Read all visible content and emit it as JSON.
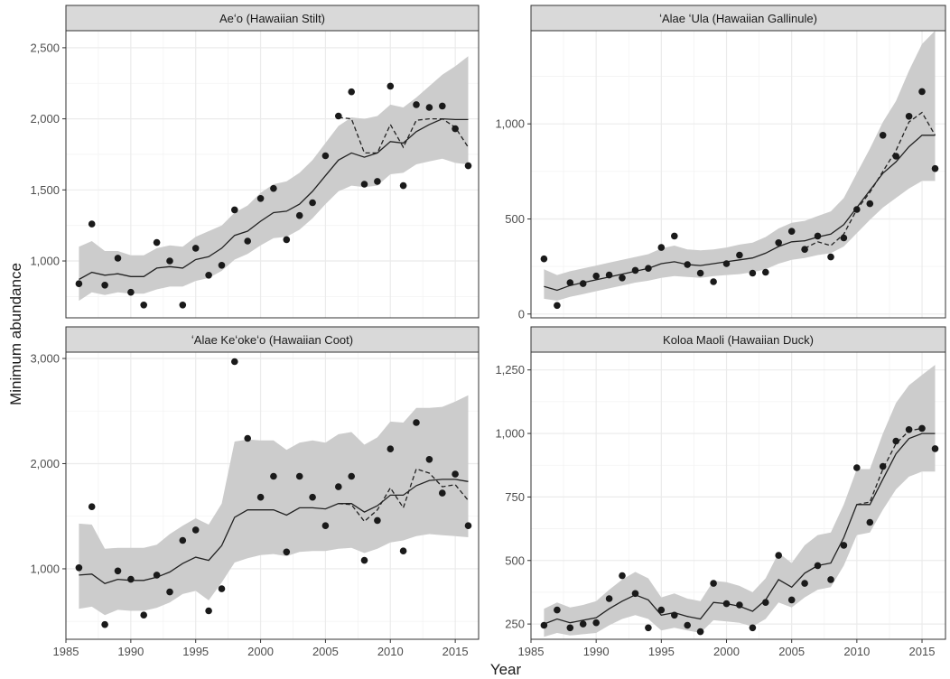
{
  "figure": {
    "ylabel": "Minimum abundance",
    "xlabel": "Year"
  },
  "colors": {
    "ribbon": "#cccccc",
    "line": "#222222",
    "point": "#1a1a1a",
    "strip_bg": "#d9d9d9",
    "panel_border": "#333333",
    "grid": "#ebebeb"
  },
  "chart_data": [
    {
      "type": "line",
      "title": "Aeʻo (Hawaiian Stilt)",
      "xlim": [
        1985,
        2016.8
      ],
      "ylim": [
        600,
        2620
      ],
      "xticks": [
        1985,
        1990,
        1995,
        2000,
        2005,
        2010,
        2015
      ],
      "yticks": [
        1000,
        1500,
        2000,
        2500
      ],
      "ytick_labels": [
        "1,000",
        "1,500",
        "2,000",
        "2,500"
      ],
      "x": [
        1986,
        1987,
        1988,
        1989,
        1990,
        1991,
        1992,
        1993,
        1994,
        1995,
        1996,
        1997,
        1998,
        1999,
        2000,
        2001,
        2002,
        2003,
        2004,
        2005,
        2006,
        2007,
        2008,
        2009,
        2010,
        2011,
        2012,
        2013,
        2014,
        2015,
        2016
      ],
      "points": [
        840,
        1260,
        830,
        1020,
        780,
        690,
        1130,
        1000,
        690,
        1090,
        900,
        970,
        1360,
        1140,
        1440,
        1510,
        1150,
        1320,
        1410,
        1740,
        2020,
        2190,
        1540,
        1560,
        2230,
        1530,
        2100,
        2080,
        2090,
        1930,
        1670
      ],
      "fit": [
        870,
        920,
        900,
        910,
        890,
        890,
        950,
        960,
        950,
        1010,
        1030,
        1090,
        1180,
        1210,
        1280,
        1340,
        1350,
        1400,
        1490,
        1600,
        1710,
        1760,
        1730,
        1760,
        1840,
        1830,
        1910,
        1960,
        2000,
        1995,
        1995
      ],
      "dashed": [
        null,
        null,
        null,
        null,
        null,
        null,
        null,
        null,
        null,
        null,
        null,
        null,
        null,
        null,
        null,
        null,
        null,
        null,
        null,
        null,
        2010,
        2000,
        1760,
        1760,
        1960,
        1800,
        1990,
        2000,
        2000,
        1940,
        1800
      ],
      "lower": [
        720,
        780,
        760,
        780,
        770,
        770,
        800,
        820,
        820,
        860,
        880,
        930,
        1010,
        1050,
        1110,
        1160,
        1170,
        1220,
        1300,
        1400,
        1490,
        1530,
        1520,
        1530,
        1610,
        1620,
        1680,
        1700,
        1720,
        1690,
        1680
      ],
      "upper": [
        1100,
        1140,
        1070,
        1070,
        1040,
        1040,
        1090,
        1110,
        1100,
        1170,
        1210,
        1250,
        1340,
        1390,
        1480,
        1540,
        1560,
        1620,
        1710,
        1830,
        1950,
        2010,
        2000,
        2020,
        2100,
        2080,
        2150,
        2230,
        2310,
        2370,
        2440
      ]
    },
    {
      "type": "line",
      "title": "ʻAlae ʻUla (Hawaiian Gallinule)",
      "xlim": [
        1985,
        2016.8
      ],
      "ylim": [
        -20,
        1490
      ],
      "xticks": [
        1985,
        1990,
        1995,
        2000,
        2005,
        2010,
        2015
      ],
      "yticks": [
        0,
        500,
        1000
      ],
      "ytick_labels": [
        "0",
        "500",
        "1,000"
      ],
      "x": [
        1986,
        1987,
        1988,
        1989,
        1990,
        1991,
        1992,
        1993,
        1994,
        1995,
        1996,
        1997,
        1998,
        1999,
        2000,
        2001,
        2002,
        2003,
        2004,
        2005,
        2006,
        2007,
        2008,
        2009,
        2010,
        2011,
        2012,
        2013,
        2014,
        2015,
        2016
      ],
      "points": [
        290,
        45,
        165,
        160,
        200,
        205,
        190,
        230,
        240,
        350,
        410,
        260,
        215,
        170,
        265,
        310,
        215,
        220,
        375,
        435,
        340,
        410,
        300,
        400,
        550,
        580,
        940,
        830,
        1040,
        1170,
        765
      ],
      "fit": [
        145,
        125,
        150,
        165,
        180,
        195,
        210,
        225,
        240,
        265,
        275,
        260,
        255,
        265,
        275,
        285,
        295,
        320,
        355,
        380,
        385,
        405,
        420,
        470,
        560,
        650,
        740,
        800,
        880,
        940,
        940
      ],
      "dashed": [
        null,
        null,
        null,
        null,
        null,
        null,
        null,
        null,
        null,
        null,
        null,
        null,
        null,
        null,
        null,
        null,
        null,
        null,
        null,
        null,
        345,
        380,
        360,
        420,
        550,
        640,
        750,
        860,
        1010,
        1060,
        940
      ],
      "lower": [
        80,
        70,
        90,
        105,
        120,
        135,
        150,
        165,
        175,
        190,
        200,
        195,
        190,
        200,
        205,
        210,
        220,
        235,
        265,
        285,
        295,
        310,
        320,
        355,
        425,
        495,
        560,
        610,
        660,
        700,
        700
      ],
      "upper": [
        235,
        205,
        225,
        240,
        255,
        270,
        285,
        300,
        315,
        345,
        360,
        340,
        335,
        340,
        350,
        365,
        375,
        405,
        450,
        480,
        490,
        515,
        540,
        610,
        740,
        870,
        1010,
        1120,
        1280,
        1420,
        1490
      ]
    },
    {
      "type": "line",
      "title": "ʻAlae Keʻokeʻo (Hawaiian Coot)",
      "xlim": [
        1985,
        2016.8
      ],
      "ylim": [
        330,
        3060
      ],
      "xticks": [
        1985,
        1990,
        1995,
        2000,
        2005,
        2010,
        2015
      ],
      "yticks": [
        1000,
        2000,
        3000
      ],
      "ytick_labels": [
        "1,000",
        "2,000",
        "3,000"
      ],
      "x": [
        1986,
        1987,
        1988,
        1989,
        1990,
        1991,
        1992,
        1993,
        1994,
        1995,
        1996,
        1997,
        1998,
        1999,
        2000,
        2001,
        2002,
        2003,
        2004,
        2005,
        2006,
        2007,
        2008,
        2009,
        2010,
        2011,
        2012,
        2013,
        2014,
        2015,
        2016
      ],
      "points": [
        1010,
        1590,
        470,
        980,
        900,
        560,
        940,
        780,
        1270,
        1370,
        600,
        810,
        2970,
        2240,
        1680,
        1880,
        1160,
        1880,
        1680,
        1410,
        1780,
        1880,
        1080,
        1460,
        2140,
        1170,
        2390,
        2040,
        1720,
        1900,
        1410
      ],
      "fit": [
        940,
        950,
        860,
        900,
        890,
        890,
        920,
        970,
        1050,
        1110,
        1080,
        1220,
        1490,
        1560,
        1560,
        1560,
        1510,
        1580,
        1580,
        1570,
        1620,
        1620,
        1540,
        1600,
        1700,
        1700,
        1790,
        1840,
        1850,
        1850,
        1830
      ],
      "dashed": [
        null,
        null,
        null,
        null,
        null,
        null,
        null,
        null,
        null,
        null,
        null,
        null,
        null,
        null,
        null,
        null,
        null,
        null,
        null,
        null,
        1620,
        1610,
        1450,
        1560,
        1770,
        1580,
        1950,
        1910,
        1780,
        1800,
        1650
      ],
      "lower": [
        620,
        640,
        560,
        610,
        600,
        600,
        630,
        680,
        760,
        790,
        700,
        870,
        1060,
        1100,
        1130,
        1140,
        1120,
        1160,
        1170,
        1170,
        1190,
        1200,
        1150,
        1190,
        1250,
        1270,
        1310,
        1330,
        1320,
        1310,
        1300
      ],
      "upper": [
        1430,
        1420,
        1190,
        1200,
        1200,
        1200,
        1230,
        1330,
        1410,
        1480,
        1420,
        1620,
        2210,
        2230,
        2220,
        2220,
        2130,
        2200,
        2220,
        2200,
        2280,
        2300,
        2180,
        2250,
        2400,
        2390,
        2530,
        2530,
        2540,
        2590,
        2650
      ]
    },
    {
      "type": "line",
      "title": "Koloa Maoli (Hawaiian Duck)",
      "xlim": [
        1985,
        2016.8
      ],
      "ylim": [
        190,
        1320
      ],
      "xticks": [
        1985,
        1990,
        1995,
        2000,
        2005,
        2010,
        2015
      ],
      "yticks": [
        250,
        500,
        750,
        1000,
        1250
      ],
      "ytick_labels": [
        "250",
        "500",
        "750",
        "1,000",
        "1,250"
      ],
      "x": [
        1986,
        1987,
        1988,
        1989,
        1990,
        1991,
        1992,
        1993,
        1994,
        1995,
        1996,
        1997,
        1998,
        1999,
        2000,
        2001,
        2002,
        2003,
        2004,
        2005,
        2006,
        2007,
        2008,
        2009,
        2010,
        2011,
        2012,
        2013,
        2014,
        2015,
        2016
      ],
      "points": [
        245,
        305,
        235,
        250,
        255,
        350,
        440,
        370,
        235,
        305,
        285,
        245,
        220,
        410,
        330,
        325,
        235,
        335,
        520,
        345,
        410,
        480,
        425,
        560,
        865,
        650,
        870,
        970,
        1015,
        1020,
        940
      ],
      "fit": [
        250,
        270,
        255,
        265,
        275,
        310,
        340,
        365,
        345,
        285,
        295,
        280,
        270,
        335,
        330,
        320,
        300,
        345,
        425,
        395,
        450,
        480,
        490,
        590,
        720,
        720,
        820,
        920,
        980,
        1000,
        1000
      ],
      "dashed": [
        null,
        null,
        null,
        null,
        null,
        null,
        null,
        null,
        null,
        null,
        null,
        null,
        null,
        null,
        null,
        null,
        null,
        null,
        null,
        null,
        null,
        null,
        null,
        null,
        720,
        730,
        860,
        960,
        1010,
        1020,
        null
      ],
      "lower": [
        200,
        215,
        205,
        210,
        215,
        245,
        270,
        285,
        270,
        225,
        235,
        225,
        215,
        265,
        260,
        255,
        240,
        270,
        335,
        315,
        355,
        385,
        395,
        480,
        600,
        610,
        700,
        780,
        830,
        850,
        850
      ],
      "upper": [
        310,
        335,
        315,
        325,
        340,
        385,
        425,
        455,
        430,
        355,
        370,
        350,
        340,
        420,
        415,
        400,
        375,
        430,
        530,
        490,
        560,
        600,
        610,
        720,
        860,
        860,
        1000,
        1120,
        1190,
        1230,
        1270
      ]
    }
  ]
}
